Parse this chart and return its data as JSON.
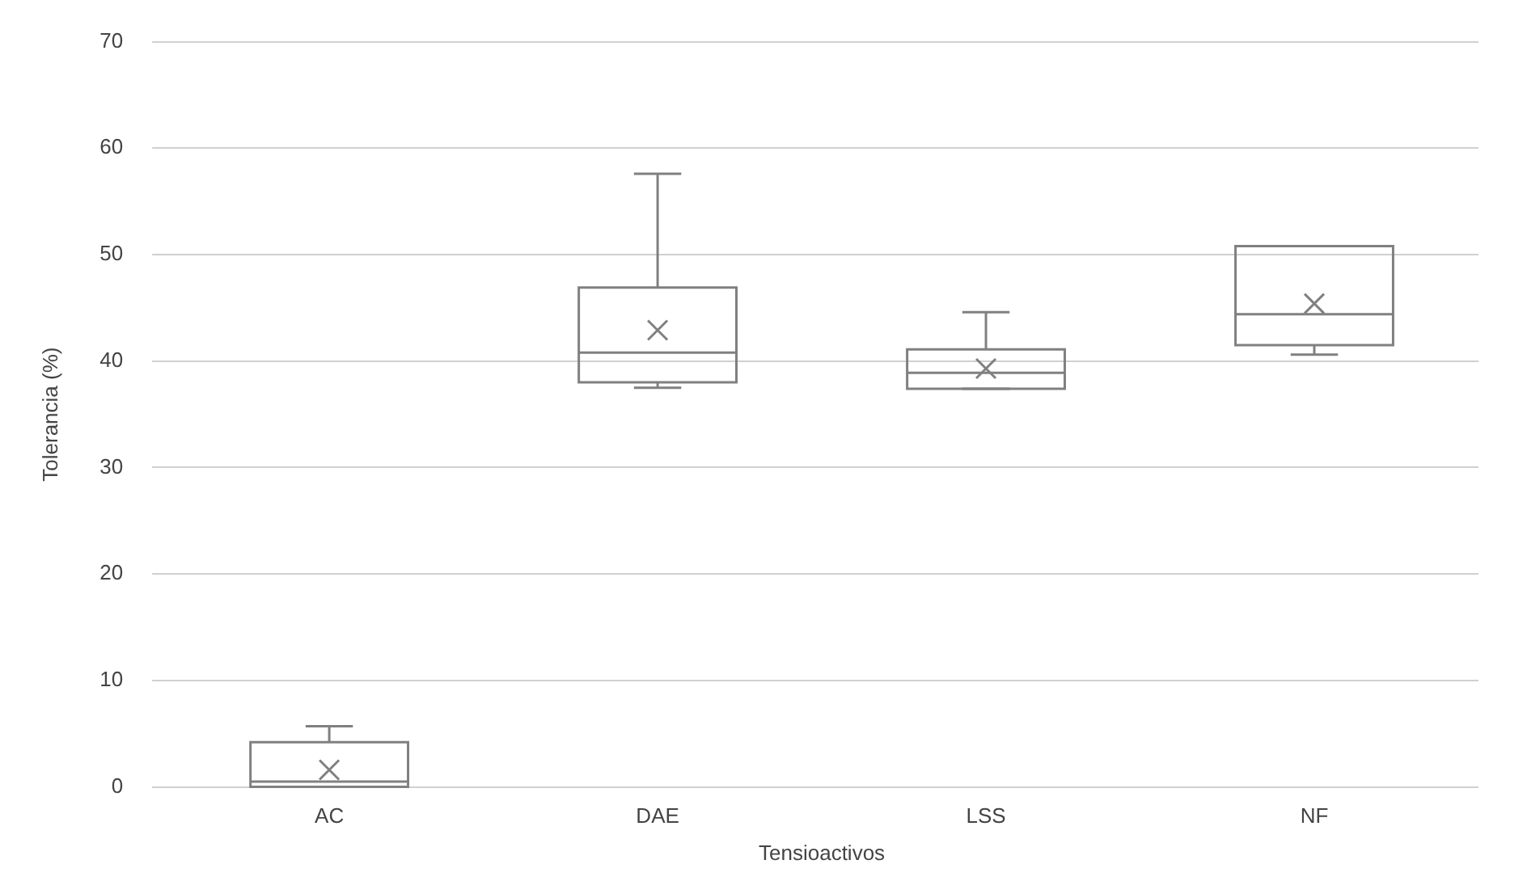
{
  "chart_data": {
    "type": "box",
    "xlabel": "Tensioactivos",
    "ylabel": "Tolerancia (%)",
    "categories": [
      "AC",
      "DAE",
      "LSS",
      "NF"
    ],
    "boxes": [
      {
        "low": 0,
        "q1": 0,
        "median": 0.5,
        "q3": 4.2,
        "high": 5.7,
        "mean": 1.6
      },
      {
        "low": 37.5,
        "q1": 38,
        "median": 40.8,
        "q3": 46.9,
        "high": 57.6,
        "mean": 42.9
      },
      {
        "low": 37.4,
        "q1": 37.4,
        "median": 38.9,
        "q3": 41.1,
        "high": 44.6,
        "mean": 39.3
      },
      {
        "low": 40.6,
        "q1": 41.5,
        "median": 44.4,
        "q3": 50.8,
        "high": 50.8,
        "mean": 45.4
      }
    ],
    "color": "#808080",
    "ylim": [
      0,
      70
    ],
    "yticks": [
      0,
      10,
      20,
      30,
      40,
      50,
      60,
      70
    ],
    "grid": "y",
    "legend": false
  }
}
